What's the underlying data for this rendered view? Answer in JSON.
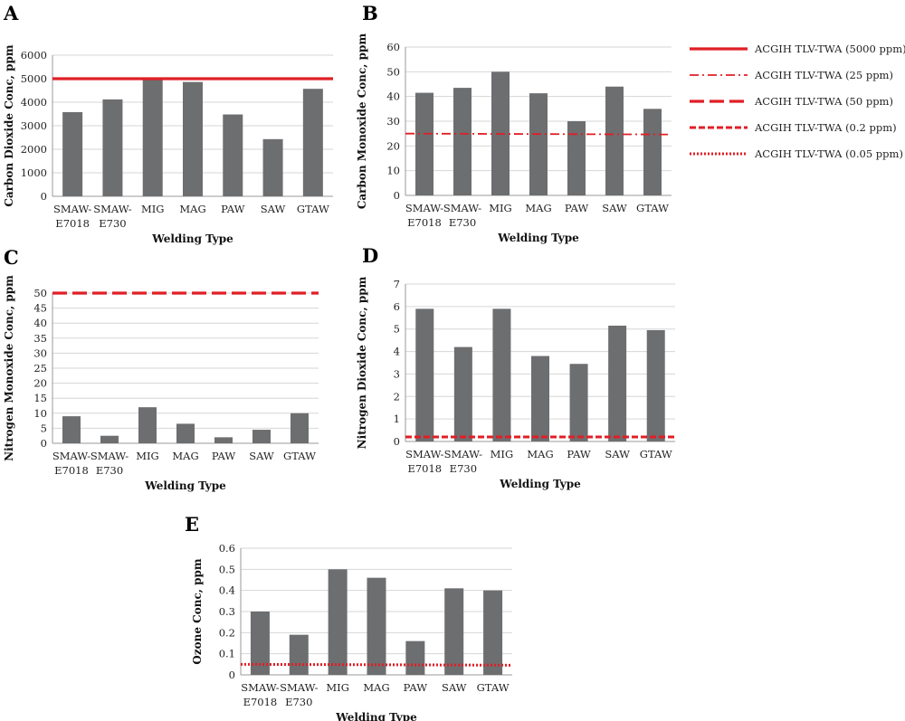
{
  "colors": {
    "bar": "#6d6e70",
    "limit": "#e01f26",
    "grid": "#d6d6d6",
    "axis": "#9a9a9a"
  },
  "legend": {
    "items": [
      {
        "label": "ACGIH  TLV-TWA (5000 ppm)",
        "style": "solid"
      },
      {
        "label": "ACGIH  TLV-TWA (25 ppm)",
        "style": "dashdot"
      },
      {
        "label": "ACGIH  TLV-TWA (50 ppm)",
        "style": "longdash"
      },
      {
        "label": "ACGIH  TLV-TWA (0.2 ppm)",
        "style": "dash"
      },
      {
        "label": "ACGIH TLV-TWA (0.05 ppm)",
        "style": "dot"
      }
    ]
  },
  "chart_data": [
    {
      "panel": "A",
      "type": "bar",
      "categories": [
        "SMAW-E7018",
        "SMAW-E730",
        "MIG",
        "MAG",
        "PAW",
        "SAW",
        "GTAW"
      ],
      "category_lines": [
        [
          "SMAW-",
          "E7018"
        ],
        [
          "SMAW-",
          "E730"
        ],
        [
          "MIG"
        ],
        [
          "MAG"
        ],
        [
          "PAW"
        ],
        [
          "SAW"
        ],
        [
          "GTAW"
        ]
      ],
      "values": [
        3580,
        4120,
        4980,
        4860,
        3480,
        2430,
        4570
      ],
      "ylim": [
        0,
        6000
      ],
      "yticks": [
        0,
        1000,
        2000,
        3000,
        4000,
        5000,
        6000
      ],
      "xlabel": "Welding Type",
      "ylabel": "Carbon Dioxide Conc, ppm",
      "limit_value": 5000,
      "limit_style": "solid",
      "grid": true
    },
    {
      "panel": "B",
      "type": "bar",
      "categories": [
        "SMAW-E7018",
        "SMAW-E730",
        "MIG",
        "MAG",
        "PAW",
        "SAW",
        "GTAW"
      ],
      "category_lines": [
        [
          "SMAW-",
          "E7018"
        ],
        [
          "SMAW-",
          "E730"
        ],
        [
          "MIG"
        ],
        [
          "MAG"
        ],
        [
          "PAW"
        ],
        [
          "SAW"
        ],
        [
          "GTAW"
        ]
      ],
      "values": [
        41.5,
        43.5,
        50,
        41.3,
        30,
        44,
        35
      ],
      "ylim": [
        0,
        60
      ],
      "yticks": [
        0,
        10,
        20,
        30,
        40,
        50,
        60
      ],
      "xlabel": "Welding Type",
      "ylabel": "Carbon Monoxide Conc, ppm",
      "limit_value": 25,
      "limit_style": "dashdot",
      "grid": true
    },
    {
      "panel": "C",
      "type": "bar",
      "categories": [
        "SMAW-E7018",
        "SMAW-E730",
        "MIG",
        "MAG",
        "PAW",
        "SAW",
        "GTAW"
      ],
      "category_lines": [
        [
          "SMAW-",
          "E7018"
        ],
        [
          "SMAW-",
          "E730"
        ],
        [
          "MIG"
        ],
        [
          "MAG"
        ],
        [
          "PAW"
        ],
        [
          "SAW"
        ],
        [
          "GTAW"
        ]
      ],
      "values": [
        9,
        2.5,
        12,
        6.5,
        2,
        4.5,
        10
      ],
      "ylim": [
        0,
        50
      ],
      "yticks": [
        0,
        5,
        10,
        15,
        20,
        25,
        30,
        35,
        40,
        45,
        50
      ],
      "xlabel": "Welding Type",
      "ylabel": "Nitrogen Monoxide Conc, ppm",
      "limit_value": 50,
      "limit_style": "longdash",
      "grid": true
    },
    {
      "panel": "D",
      "type": "bar",
      "categories": [
        "SMAW-E7018",
        "SMAW-E730",
        "MIG",
        "MAG",
        "PAW",
        "SAW",
        "GTAW"
      ],
      "category_lines": [
        [
          "SMAW-",
          "E7018"
        ],
        [
          "SMAW-",
          "E730"
        ],
        [
          "MIG"
        ],
        [
          "MAG"
        ],
        [
          "PAW"
        ],
        [
          "SAW"
        ],
        [
          "GTAW"
        ]
      ],
      "values": [
        5.9,
        4.2,
        5.9,
        3.8,
        3.45,
        5.15,
        4.95
      ],
      "ylim": [
        0,
        7
      ],
      "yticks": [
        0,
        1,
        2,
        3,
        4,
        5,
        6,
        7
      ],
      "xlabel": "Welding Type",
      "ylabel": "Nitrogen Dioxide Conc, ppm",
      "limit_value": 0.2,
      "limit_style": "dash",
      "grid": true
    },
    {
      "panel": "E",
      "type": "bar",
      "categories": [
        "SMAW-E7018",
        "SMAW-E730",
        "MIG",
        "MAG",
        "PAW",
        "SAW",
        "GTAW"
      ],
      "category_lines": [
        [
          "SMAW-",
          "E7018"
        ],
        [
          "SMAW-",
          "E730"
        ],
        [
          "MIG"
        ],
        [
          "MAG"
        ],
        [
          "PAW"
        ],
        [
          "SAW"
        ],
        [
          "GTAW"
        ]
      ],
      "values": [
        0.3,
        0.19,
        0.5,
        0.46,
        0.16,
        0.41,
        0.4
      ],
      "ylim": [
        0,
        0.6
      ],
      "yticks": [
        0,
        0.1,
        0.2,
        0.3,
        0.4,
        0.5,
        0.6
      ],
      "xlabel": "Welding Type",
      "ylabel": "Ozone Conc, ppm",
      "limit_value": 0.05,
      "limit_style": "dot",
      "grid": true
    }
  ]
}
